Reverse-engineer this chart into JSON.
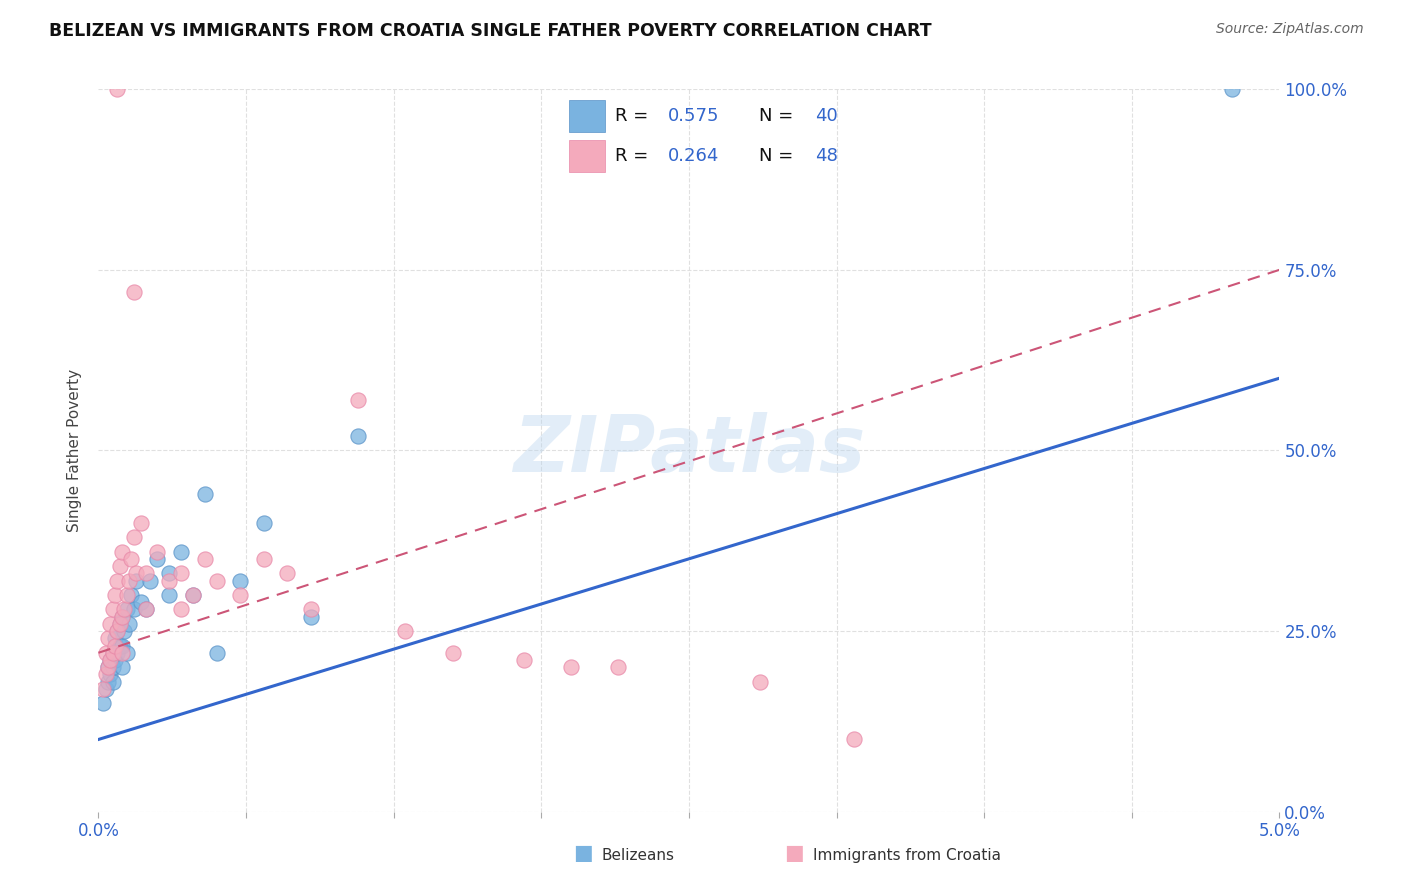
{
  "title": "BELIZEAN VS IMMIGRANTS FROM CROATIA SINGLE FATHER POVERTY CORRELATION CHART",
  "source": "Source: ZipAtlas.com",
  "ylabel": "Single Father Poverty",
  "ytick_vals": [
    0.0,
    0.25,
    0.5,
    0.75,
    1.0
  ],
  "xlim": [
    0.0,
    0.05
  ],
  "ylim": [
    0.0,
    1.0
  ],
  "legend_labels": [
    "Belizeans",
    "Immigrants from Croatia"
  ],
  "R_blue": 0.575,
  "N_blue": 40,
  "R_pink": 0.264,
  "N_pink": 48,
  "blue_color": "#7ab3e0",
  "blue_edge_color": "#5a93c8",
  "pink_color": "#f4aabc",
  "pink_edge_color": "#e888a8",
  "blue_line_color": "#3366cc",
  "pink_line_color": "#cc5577",
  "watermark": "ZIPatlas",
  "background_color": "#ffffff",
  "grid_color": "#e0e0e0",
  "blue_line_y0": 0.1,
  "blue_line_y1": 0.6,
  "pink_line_y0": 0.22,
  "pink_line_y1": 0.75,
  "blue_points_x": [
    0.0002,
    0.0003,
    0.0004,
    0.0004,
    0.0005,
    0.0005,
    0.0006,
    0.0006,
    0.0006,
    0.0007,
    0.0007,
    0.0008,
    0.0008,
    0.0009,
    0.0009,
    0.001,
    0.001,
    0.001,
    0.0011,
    0.0012,
    0.0012,
    0.0013,
    0.0014,
    0.0015,
    0.0016,
    0.0018,
    0.002,
    0.0022,
    0.0025,
    0.003,
    0.003,
    0.0035,
    0.004,
    0.0045,
    0.005,
    0.006,
    0.007,
    0.009,
    0.011,
    0.048
  ],
  "blue_points_y": [
    0.15,
    0.17,
    0.18,
    0.2,
    0.19,
    0.21,
    0.18,
    0.2,
    0.22,
    0.21,
    0.24,
    0.22,
    0.25,
    0.23,
    0.26,
    0.2,
    0.23,
    0.27,
    0.25,
    0.22,
    0.28,
    0.26,
    0.3,
    0.28,
    0.32,
    0.29,
    0.28,
    0.32,
    0.35,
    0.3,
    0.33,
    0.36,
    0.3,
    0.44,
    0.22,
    0.32,
    0.4,
    0.27,
    0.52,
    1.0
  ],
  "pink_points_x": [
    0.0002,
    0.0003,
    0.0003,
    0.0004,
    0.0004,
    0.0005,
    0.0005,
    0.0006,
    0.0006,
    0.0007,
    0.0007,
    0.0008,
    0.0008,
    0.0009,
    0.0009,
    0.001,
    0.001,
    0.001,
    0.0011,
    0.0012,
    0.0013,
    0.0014,
    0.0015,
    0.0016,
    0.0018,
    0.002,
    0.002,
    0.0025,
    0.003,
    0.0035,
    0.0035,
    0.004,
    0.0045,
    0.005,
    0.006,
    0.007,
    0.008,
    0.009,
    0.011,
    0.013,
    0.015,
    0.018,
    0.02,
    0.022,
    0.028,
    0.032,
    0.0015,
    0.0008
  ],
  "pink_points_y": [
    0.17,
    0.19,
    0.22,
    0.2,
    0.24,
    0.21,
    0.26,
    0.22,
    0.28,
    0.23,
    0.3,
    0.25,
    0.32,
    0.26,
    0.34,
    0.22,
    0.27,
    0.36,
    0.28,
    0.3,
    0.32,
    0.35,
    0.38,
    0.33,
    0.4,
    0.28,
    0.33,
    0.36,
    0.32,
    0.28,
    0.33,
    0.3,
    0.35,
    0.32,
    0.3,
    0.35,
    0.33,
    0.28,
    0.57,
    0.25,
    0.22,
    0.21,
    0.2,
    0.2,
    0.18,
    0.1,
    0.72,
    1.0
  ]
}
